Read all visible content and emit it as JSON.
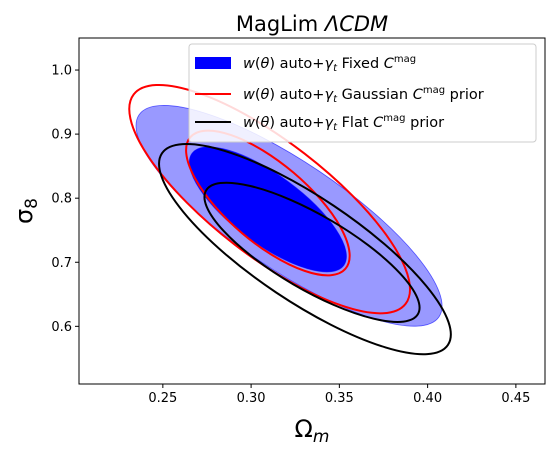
{
  "chart_data": {
    "type": "contour",
    "title": "MagLim ΛCDM",
    "xlabel": "Ω_m",
    "ylabel": "σ_8",
    "xlim": [
      0.2025,
      0.4665
    ],
    "ylim": [
      0.51,
      1.05
    ],
    "xticks": [
      "0.25",
      "0.30",
      "0.35",
      "0.40",
      "0.45"
    ],
    "yticks": [
      "0.6",
      "0.7",
      "0.8",
      "0.9",
      "1.0"
    ],
    "grid": false,
    "legend_position": "top-right",
    "series": [
      {
        "name": "w(θ) auto+γt  Fixed C^mag",
        "style": "filled",
        "color": "#0000ff",
        "contours": [
          {
            "level": "outer",
            "center": [
              0.3215,
              0.7725
            ],
            "endpoints": [
              [
                0.2365,
                0.93
              ],
              [
                0.4065,
                0.615
              ]
            ],
            "half_width": 0.0305
          },
          {
            "level": "inner",
            "center": [
              0.3095,
              0.7825
            ],
            "endpoints": [
              [
                0.2665,
                0.87
              ],
              [
                0.3525,
                0.695
              ]
            ],
            "half_width": 0.0195
          }
        ]
      },
      {
        "name": "w(θ) auto+γt  Gaussian C^mag prior",
        "style": "line",
        "color": "#ff0000",
        "contours": [
          {
            "level": "outer",
            "center": [
              0.3105,
              0.7985
            ],
            "endpoints": [
              [
                0.2335,
                0.962
              ],
              [
                0.3875,
                0.635
              ]
            ],
            "half_width": 0.0325
          },
          {
            "level": "inner",
            "center": [
              0.3095,
              0.7925
            ],
            "endpoints": [
              [
                0.2655,
                0.895
              ],
              [
                0.3535,
                0.69
              ]
            ],
            "half_width": 0.0225
          }
        ]
      },
      {
        "name": "w(θ) auto+γt  Flat C^mag prior",
        "style": "line",
        "color": "#000000",
        "contours": [
          {
            "level": "outer",
            "center": [
              0.3305,
              0.7205
            ],
            "endpoints": [
              [
                0.2495,
                0.87
              ],
              [
                0.4115,
                0.571
              ]
            ],
            "half_width": 0.0295
          },
          {
            "level": "inner",
            "center": [
              0.3345,
              0.7155
            ],
            "endpoints": [
              [
                0.2745,
                0.812
              ],
              [
                0.3945,
                0.619
              ]
            ],
            "half_width": 0.021
          }
        ]
      }
    ]
  }
}
